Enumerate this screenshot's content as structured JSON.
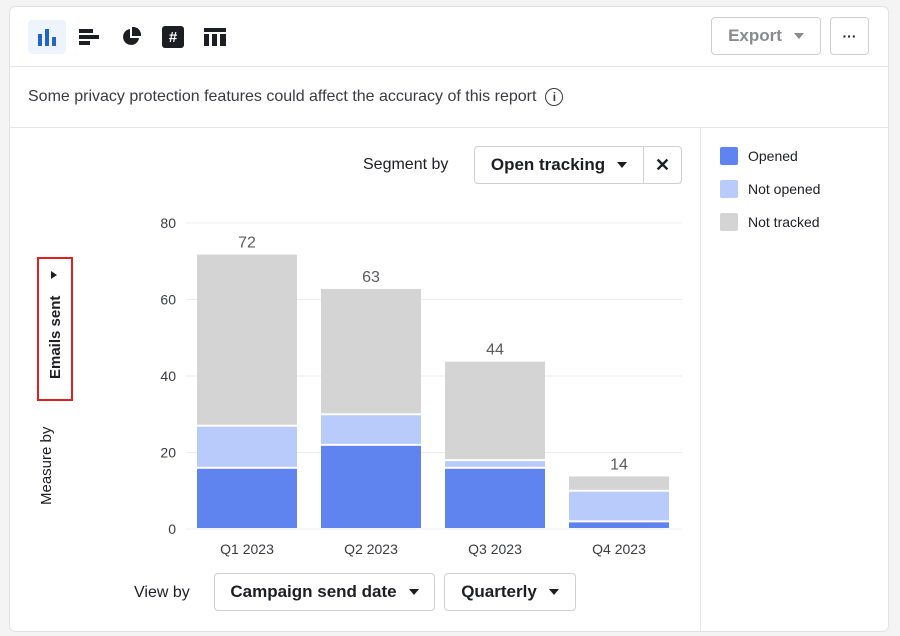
{
  "toolbar": {
    "icons": [
      "bar-chart-icon",
      "horizontal-bar-icon",
      "pie-chart-icon",
      "number-icon",
      "table-icon"
    ],
    "export_label": "Export",
    "more_label": "···"
  },
  "notice": {
    "text": "Some privacy protection features could affect the accuracy of this report",
    "icon": "i"
  },
  "segment": {
    "label": "Segment by",
    "value": "Open tracking",
    "clear": "✕"
  },
  "measure": {
    "label": "Measure by",
    "value": "Emails sent"
  },
  "view": {
    "label": "View by",
    "value": "Campaign send date",
    "period": "Quarterly"
  },
  "chart_data": {
    "type": "bar",
    "stacked": true,
    "categories": [
      "Q1 2023",
      "Q2 2023",
      "Q3 2023",
      "Q4 2023"
    ],
    "series": [
      {
        "name": "Opened",
        "color": "#5f84ef",
        "values": [
          16,
          22,
          16,
          2
        ]
      },
      {
        "name": "Not opened",
        "color": "#b9cbfb",
        "values": [
          11,
          8,
          2,
          8
        ]
      },
      {
        "name": "Not tracked",
        "color": "#d4d4d4",
        "values": [
          45,
          33,
          26,
          4
        ]
      }
    ],
    "totals": [
      "72",
      "63",
      "44",
      "14"
    ],
    "yticks": [
      "0",
      "20",
      "40",
      "60",
      "80"
    ],
    "ylim": [
      0,
      80
    ],
    "grid": true,
    "legend": "right"
  }
}
